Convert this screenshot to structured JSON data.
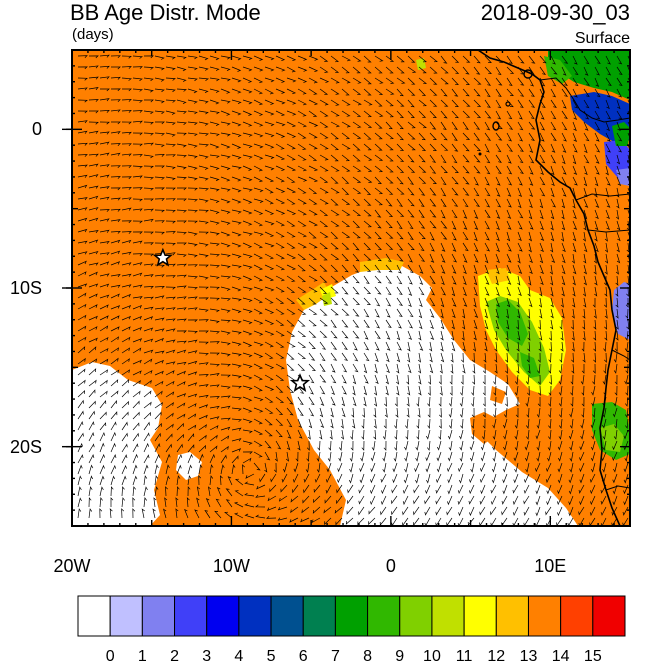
{
  "header": {
    "title": "BB Age Distr. Mode",
    "units": "(days)",
    "datetime": "2018-09-30_03",
    "level": "Surface"
  },
  "axes": {
    "y_ticks": [
      {
        "label": "0",
        "lat": 0
      },
      {
        "label": "10S",
        "lat": -10
      },
      {
        "label": "20S",
        "lat": -20
      }
    ],
    "x_ticks": [
      {
        "label": "20W",
        "lon": -20
      },
      {
        "label": "10W",
        "lon": -10
      },
      {
        "label": "0",
        "lon": 0
      },
      {
        "label": "10E",
        "lon": 10
      }
    ],
    "lon_range": [
      -20,
      15
    ],
    "lat_range": [
      -25,
      5
    ]
  },
  "colorbar": {
    "labels": [
      "0",
      "1",
      "2",
      "3",
      "4",
      "5",
      "6",
      "7",
      "8",
      "9",
      "10",
      "11",
      "12",
      "13",
      "14",
      "15"
    ],
    "colors": [
      "#ffffff",
      "#c0c0ff",
      "#8080f0",
      "#4040f8",
      "#0000f0",
      "#0030c0",
      "#005090",
      "#008050",
      "#00a000",
      "#30b800",
      "#80d000",
      "#c0e000",
      "#ffff00",
      "#ffc000",
      "#ff8000",
      "#ff4000",
      "#f00000"
    ]
  },
  "markers": [
    {
      "name": "star",
      "lon": -14.3,
      "lat": -8.1
    },
    {
      "name": "star",
      "lon": -5.7,
      "lat": -16.0
    }
  ],
  "colors": {
    "orange": "#ff8000",
    "white": "#ffffff",
    "yellow": "#ffff00",
    "amber": "#ffc000",
    "lime": "#80d000",
    "green": "#30b800",
    "dark_green": "#00a000",
    "blue": "#0030c0",
    "medium_blue": "#4040f8",
    "light_blue": "#8080f0",
    "coast": "#000000"
  }
}
